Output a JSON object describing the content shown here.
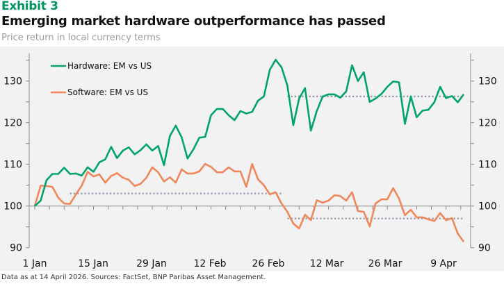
{
  "header": {
    "exhibit": "Exhibit 3",
    "title": "Emerging market hardware outperformance has passed",
    "subtitle": "Price return in local currency terms"
  },
  "footer": {
    "note": "Data as at 14 April 2026. Sources: FactSet, BNP Paribas Asset Management."
  },
  "colors": {
    "exhibit": "#00965e",
    "hardware": "#00a36c",
    "software": "#f0875a",
    "dotted": "#8a94a6",
    "axis": "#888888",
    "background": "#f2f2f2"
  },
  "chart_data": {
    "type": "line",
    "title": "Emerging market hardware outperformance has passed",
    "subtitle": "Price return in local currency terms",
    "xlabel": "",
    "ylabel": "",
    "ylim": [
      90,
      135
    ],
    "yticks": [
      90,
      100,
      110,
      120,
      130
    ],
    "y_axes": "left and right (mirrored)",
    "x_tick_labels": [
      "1 Jan",
      "15 Jan",
      "29 Jan",
      "12 Feb",
      "26 Feb",
      "12 Mar",
      "26 Mar",
      "9 Apr"
    ],
    "x_range": "1 Jan to 14 Apr (business days)",
    "grid": false,
    "legend_position": "top-left",
    "series": [
      {
        "name": "Hardware: EM vs US",
        "values": [
          100,
          101.3,
          106.2,
          107.7,
          107.7,
          109.2,
          107.7,
          107.8,
          107.3,
          109.3,
          108.2,
          110.5,
          111.2,
          114.2,
          111.5,
          113.3,
          114.1,
          112.4,
          113.4,
          114.8,
          113.3,
          114.4,
          109.8,
          116.8,
          119.3,
          116.5,
          111.4,
          113.6,
          116.4,
          116.6,
          121.8,
          123.3,
          123.3,
          121.8,
          120.6,
          122.8,
          122.2,
          122.6,
          125.3,
          126.3,
          132.7,
          135.1,
          133.3,
          128.9,
          119.4,
          125.8,
          128.3,
          118.1,
          122.8,
          126.3,
          126.8,
          126.8,
          126.0,
          127.5,
          133.8,
          130.0,
          132.1,
          125.0,
          125.8,
          126.9,
          128.6,
          129.9,
          129.7,
          119.7,
          126.3,
          121.3,
          122.9,
          123.1,
          124.9,
          128.6,
          125.9,
          126.4,
          124.9,
          126.8
        ]
      },
      {
        "name": "Software: EM vs US",
        "values": [
          100,
          104.9,
          104.8,
          104.6,
          102.0,
          100.6,
          100.5,
          102.8,
          104.9,
          108.2,
          107.1,
          107.6,
          105.6,
          107.2,
          107.9,
          106.8,
          106.3,
          104.8,
          105.3,
          106.8,
          109.3,
          108.1,
          105.9,
          106.9,
          105.6,
          108.8,
          107.8,
          107.8,
          108.3,
          110.1,
          109.4,
          108.1,
          108.1,
          109.3,
          108.3,
          108.3,
          104.6,
          110.1,
          106.4,
          105.0,
          102.8,
          103.3,
          100.6,
          98.6,
          95.8,
          94.6,
          97.9,
          96.6,
          101.4,
          100.8,
          101.3,
          102.6,
          102.4,
          101.3,
          103.3,
          98.8,
          98.6,
          95.1,
          100.6,
          101.6,
          101.6,
          104.3,
          101.8,
          97.8,
          99.1,
          97.3,
          97.3,
          96.8,
          96.4,
          98.3,
          96.6,
          97.1,
          93.4,
          91.4
        ]
      }
    ],
    "reference_lines": [
      {
        "series": "Software: EM vs US",
        "value": 103,
        "from_index": 6,
        "to_index": 42,
        "style": "dotted"
      },
      {
        "series": "Software: EM vs US",
        "value": 97,
        "from_index": 43,
        "to_index": 73,
        "style": "dotted"
      },
      {
        "series": "Hardware: EM vs US",
        "value": 126.3,
        "from_index": 43,
        "to_index": 73,
        "style": "dotted"
      }
    ]
  }
}
